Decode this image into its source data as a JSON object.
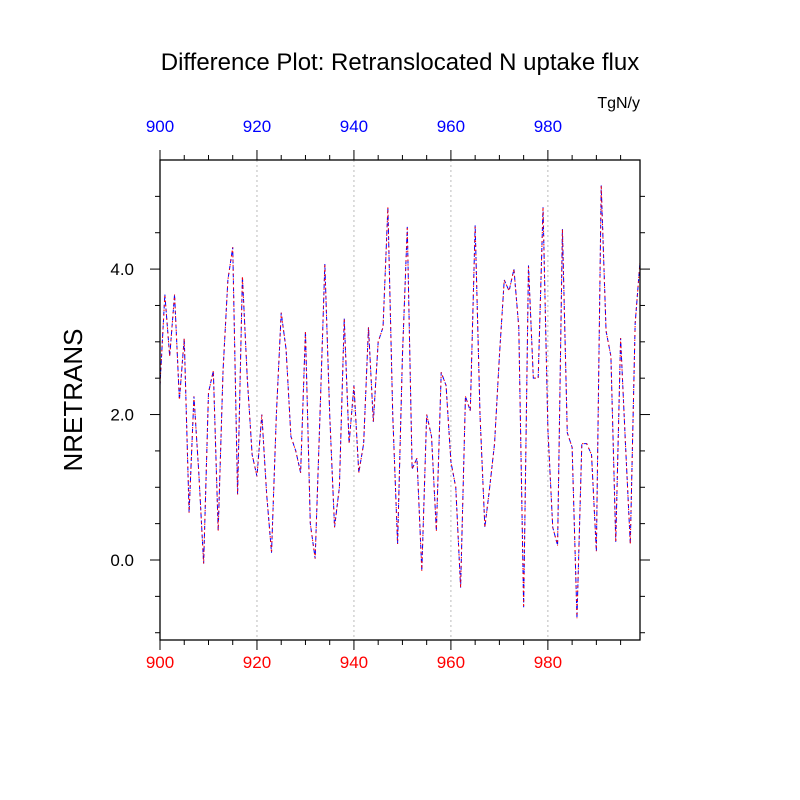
{
  "chart_data": {
    "type": "line",
    "title": "Difference Plot: Retranslocated N uptake flux",
    "units": "TgN/y",
    "ylabel": "NRETRANS",
    "xlim": [
      900,
      999
    ],
    "ylim": [
      -1.1,
      5.5
    ],
    "x_ticks": [
      900,
      920,
      940,
      960,
      980
    ],
    "x_tick_labels": [
      "900",
      "920",
      "940",
      "960",
      "980"
    ],
    "y_ticks": [
      0,
      2,
      4
    ],
    "y_tick_labels": [
      "0.0",
      "2.0",
      "4.0"
    ],
    "top_axis_color": "#0000ff",
    "bottom_axis_color": "#ff0000",
    "grid": "vertical dotted",
    "series": [
      {
        "color": "#0000ff",
        "dash": "dashed",
        "x": [
          900,
          901,
          902,
          903,
          904,
          905,
          906,
          907,
          908,
          909,
          910,
          911,
          912,
          913,
          914,
          915,
          916,
          917,
          918,
          919,
          920,
          921,
          922,
          923,
          924,
          925,
          926,
          927,
          928,
          929,
          930,
          931,
          932,
          933,
          934,
          935,
          936,
          937,
          938,
          939,
          940,
          941,
          942,
          943,
          944,
          945,
          946,
          947,
          948,
          949,
          950,
          951,
          952,
          953,
          954,
          955,
          956,
          957,
          958,
          959,
          960,
          961,
          962,
          963,
          964,
          965,
          966,
          967,
          968,
          969,
          970,
          971,
          972,
          973,
          974,
          975,
          976,
          977,
          978,
          979,
          980,
          981,
          982,
          983,
          984,
          985,
          986,
          987,
          988,
          989,
          990,
          991,
          992,
          993,
          994,
          995,
          996,
          997,
          998,
          999
        ],
        "values": [
          2.4,
          3.65,
          2.8,
          3.65,
          2.2,
          3.05,
          0.65,
          2.25,
          1.2,
          -0.05,
          2.3,
          2.6,
          0.4,
          2.6,
          3.85,
          4.3,
          0.9,
          3.9,
          2.5,
          1.45,
          1.15,
          2.0,
          0.9,
          0.1,
          2.0,
          3.4,
          2.9,
          1.7,
          1.5,
          1.2,
          3.15,
          0.5,
          0.02,
          2.0,
          4.07,
          2.0,
          0.45,
          1.0,
          3.32,
          1.6,
          2.4,
          1.2,
          1.6,
          3.2,
          1.9,
          3.0,
          3.2,
          4.85,
          2.0,
          0.22,
          2.8,
          4.58,
          1.25,
          1.4,
          -0.15,
          2.0,
          1.7,
          0.4,
          2.58,
          2.4,
          1.35,
          1.0,
          -0.38,
          2.25,
          2.05,
          4.6,
          2.0,
          0.45,
          1.0,
          1.6,
          2.8,
          3.85,
          3.7,
          4.0,
          3.2,
          -0.65,
          4.05,
          2.5,
          2.5,
          4.85,
          1.8,
          0.45,
          0.2,
          4.55,
          1.75,
          1.55,
          -0.8,
          1.6,
          1.6,
          1.45,
          0.12,
          5.15,
          3.15,
          2.8,
          0.25,
          3.05,
          1.6,
          0.22,
          3.25,
          4.1
        ]
      },
      {
        "color": "#ff0000",
        "dash": "dotted",
        "x": [
          900,
          901,
          902,
          903,
          904,
          905,
          906,
          907,
          908,
          909,
          910,
          911,
          912,
          913,
          914,
          915,
          916,
          917,
          918,
          919,
          920,
          921,
          922,
          923,
          924,
          925,
          926,
          927,
          928,
          929,
          930,
          931,
          932,
          933,
          934,
          935,
          936,
          937,
          938,
          939,
          940,
          941,
          942,
          943,
          944,
          945,
          946,
          947,
          948,
          949,
          950,
          951,
          952,
          953,
          954,
          955,
          956,
          957,
          958,
          959,
          960,
          961,
          962,
          963,
          964,
          965,
          966,
          967,
          968,
          969,
          970,
          971,
          972,
          973,
          974,
          975,
          976,
          977,
          978,
          979,
          980,
          981,
          982,
          983,
          984,
          985,
          986,
          987,
          988,
          989,
          990,
          991,
          992,
          993,
          994,
          995,
          996,
          997,
          998,
          999
        ],
        "values": [
          2.4,
          3.65,
          2.8,
          3.65,
          2.2,
          3.05,
          0.65,
          2.25,
          1.2,
          -0.05,
          2.3,
          2.6,
          0.4,
          2.6,
          3.85,
          4.3,
          0.9,
          3.9,
          2.5,
          1.45,
          1.15,
          2.0,
          0.9,
          0.1,
          2.0,
          3.4,
          2.9,
          1.7,
          1.5,
          1.2,
          3.15,
          0.5,
          0.02,
          2.0,
          4.07,
          2.0,
          0.45,
          1.0,
          3.32,
          1.6,
          2.4,
          1.2,
          1.6,
          3.2,
          1.9,
          3.0,
          3.2,
          4.85,
          2.0,
          0.22,
          2.8,
          4.58,
          1.25,
          1.4,
          -0.15,
          2.0,
          1.7,
          0.4,
          2.58,
          2.4,
          1.35,
          1.0,
          -0.38,
          2.25,
          2.05,
          4.6,
          2.0,
          0.45,
          1.0,
          1.6,
          2.8,
          3.85,
          3.7,
          4.0,
          3.2,
          -0.65,
          4.05,
          2.5,
          2.5,
          4.85,
          1.8,
          0.45,
          0.2,
          4.55,
          1.75,
          1.55,
          -0.8,
          1.6,
          1.6,
          1.45,
          0.12,
          5.15,
          3.15,
          2.8,
          0.25,
          3.05,
          1.6,
          0.22,
          3.25,
          4.1
        ]
      }
    ]
  }
}
